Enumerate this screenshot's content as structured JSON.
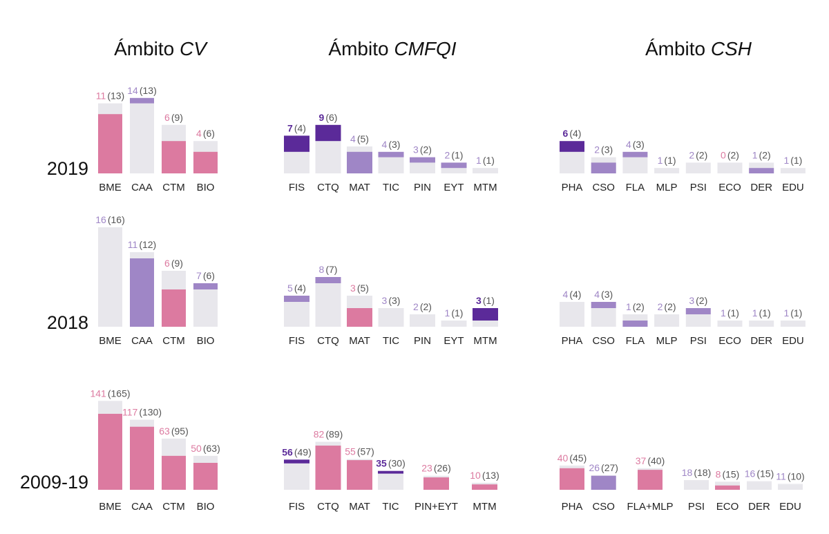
{
  "palette": {
    "pink": "#dc7aa0",
    "lavender": "#9f86c6",
    "violet": "#5b2a99",
    "grey": "#e8e7ec",
    "grey_label": "#555555"
  },
  "titles": [
    {
      "prefix": "Ámbito ",
      "name": "CV"
    },
    {
      "prefix": "Ámbito ",
      "name": "CMFQI"
    },
    {
      "prefix": "Ámbito ",
      "name": "CSH"
    }
  ],
  "year_labels": [
    "2019",
    "2018",
    "2009-19"
  ],
  "chart_data": [
    {
      "type": "bar",
      "row": "2019",
      "panel": "CV",
      "categories": [
        "BME",
        "CAA",
        "CTM",
        "BIO"
      ],
      "values": [
        11,
        14,
        6,
        4
      ],
      "previous": [
        13,
        13,
        9,
        6
      ],
      "colors": [
        "pink",
        "lavender",
        "pink",
        "pink"
      ]
    },
    {
      "type": "bar",
      "row": "2019",
      "panel": "CMFQI",
      "categories": [
        "FIS",
        "CTQ",
        "MAT",
        "TIC",
        "PIN",
        "EYT",
        "MTM"
      ],
      "values": [
        7,
        9,
        4,
        4,
        3,
        2,
        1
      ],
      "previous": [
        4,
        6,
        5,
        3,
        2,
        1,
        1
      ],
      "colors": [
        "violet",
        "violet",
        "lavender",
        "lavender",
        "lavender",
        "lavender",
        "lavender"
      ]
    },
    {
      "type": "bar",
      "row": "2019",
      "panel": "CSH",
      "categories": [
        "PHA",
        "CSO",
        "FLA",
        "MLP",
        "PSI",
        "ECO",
        "DER",
        "EDU"
      ],
      "values": [
        6,
        2,
        4,
        1,
        2,
        0,
        1,
        1
      ],
      "previous": [
        4,
        3,
        3,
        1,
        2,
        2,
        2,
        1
      ],
      "colors": [
        "violet",
        "lavender",
        "lavender",
        "lavender",
        "lavender",
        "pink",
        "lavender",
        "lavender"
      ]
    },
    {
      "type": "bar",
      "row": "2018",
      "panel": "CV",
      "categories": [
        "BME",
        "CAA",
        "CTM",
        "BIO"
      ],
      "values": [
        16,
        11,
        6,
        7
      ],
      "previous": [
        16,
        12,
        9,
        6
      ],
      "colors": [
        "lavender",
        "lavender",
        "pink",
        "lavender"
      ]
    },
    {
      "type": "bar",
      "row": "2018",
      "panel": "CMFQI",
      "categories": [
        "FIS",
        "CTQ",
        "MAT",
        "TIC",
        "PIN",
        "EYT",
        "MTM"
      ],
      "values": [
        5,
        8,
        3,
        3,
        2,
        1,
        3
      ],
      "previous": [
        4,
        7,
        5,
        3,
        2,
        1,
        1
      ],
      "colors": [
        "lavender",
        "lavender",
        "pink",
        "lavender",
        "lavender",
        "lavender",
        "violet"
      ]
    },
    {
      "type": "bar",
      "row": "2018",
      "panel": "CSH",
      "categories": [
        "PHA",
        "CSO",
        "FLA",
        "MLP",
        "PSI",
        "ECO",
        "DER",
        "EDU"
      ],
      "values": [
        4,
        4,
        1,
        2,
        3,
        1,
        1,
        1
      ],
      "previous": [
        4,
        3,
        2,
        2,
        2,
        1,
        1,
        1
      ],
      "colors": [
        "lavender",
        "lavender",
        "lavender",
        "lavender",
        "lavender",
        "lavender",
        "lavender",
        "lavender"
      ]
    },
    {
      "type": "bar",
      "row": "2009-19",
      "panel": "CV",
      "categories": [
        "BME",
        "CAA",
        "CTM",
        "BIO"
      ],
      "values": [
        141,
        117,
        63,
        50
      ],
      "previous": [
        165,
        130,
        95,
        63
      ],
      "colors": [
        "pink",
        "pink",
        "pink",
        "pink"
      ]
    },
    {
      "type": "bar",
      "row": "2009-19",
      "panel": "CMFQI",
      "categories": [
        "FIS",
        "CTQ",
        "MAT",
        "TIC",
        "PIN+EYT",
        "MTM"
      ],
      "values": [
        56,
        82,
        55,
        35,
        23,
        10
      ],
      "previous": [
        49,
        89,
        57,
        30,
        26,
        13
      ],
      "colors": [
        "violet",
        "pink",
        "pink",
        "violet",
        "pink",
        "pink"
      ]
    },
    {
      "type": "bar",
      "row": "2009-19",
      "panel": "CSH",
      "categories": [
        "PHA",
        "CSO",
        "FLA+MLP",
        "PSI",
        "ECO",
        "DER",
        "EDU"
      ],
      "values": [
        40,
        26,
        37,
        18,
        8,
        16,
        11
      ],
      "previous": [
        45,
        27,
        40,
        18,
        15,
        15,
        10
      ],
      "colors": [
        "pink",
        "lavender",
        "pink",
        "lavender",
        "pink",
        "grey",
        "grey"
      ]
    }
  ]
}
